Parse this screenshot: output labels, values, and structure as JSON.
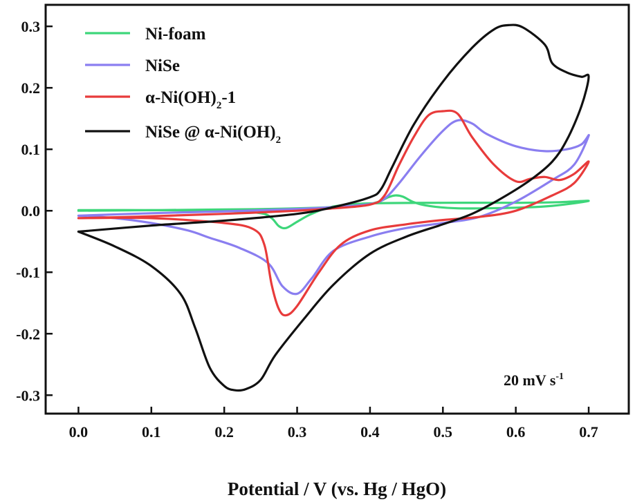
{
  "chart_data": {
    "type": "line",
    "title": "",
    "xlabel": "Potential / V (vs. Hg / HgO)",
    "ylabel": "",
    "xlim": [
      -0.045,
      0.755
    ],
    "ylim": [
      -0.33,
      0.335
    ],
    "x_ticks": [
      {
        "value": 0.0,
        "label": "0.0"
      },
      {
        "value": 0.1,
        "label": "0.1"
      },
      {
        "value": 0.2,
        "label": "0.2"
      },
      {
        "value": 0.3,
        "label": "0.3"
      },
      {
        "value": 0.4,
        "label": "0.4"
      },
      {
        "value": 0.5,
        "label": "0.5"
      },
      {
        "value": 0.6,
        "label": "0.6"
      },
      {
        "value": 0.7,
        "label": "0.7"
      }
    ],
    "y_ticks": [
      {
        "value": -0.3,
        "label": "-0.3"
      },
      {
        "value": -0.2,
        "label": "-0.2"
      },
      {
        "value": -0.1,
        "label": "-0.1"
      },
      {
        "value": 0.0,
        "label": "0.0"
      },
      {
        "value": 0.1,
        "label": "0.1"
      },
      {
        "value": 0.2,
        "label": "0.2"
      },
      {
        "value": 0.3,
        "label": "0.3"
      }
    ],
    "grid": false,
    "legend_position": "top-left",
    "annotation": {
      "text": "20 mV s",
      "superscript": "-1"
    },
    "series": [
      {
        "name": "Ni-foam",
        "legend_main": "Ni-foam",
        "legend_sub": "",
        "legend_tail": "",
        "color": "#3dd67a",
        "points": [
          [
            0.0,
            0.0
          ],
          [
            0.2,
            0.002
          ],
          [
            0.3,
            0.004
          ],
          [
            0.38,
            0.008
          ],
          [
            0.41,
            0.014
          ],
          [
            0.425,
            0.022
          ],
          [
            0.435,
            0.025
          ],
          [
            0.445,
            0.023
          ],
          [
            0.46,
            0.014
          ],
          [
            0.48,
            0.008
          ],
          [
            0.52,
            0.004
          ],
          [
            0.6,
            0.005
          ],
          [
            0.65,
            0.008
          ],
          [
            0.7,
            0.016
          ],
          [
            0.66,
            0.014
          ],
          [
            0.6,
            0.013
          ],
          [
            0.5,
            0.013
          ],
          [
            0.4,
            0.012
          ],
          [
            0.35,
            0.007
          ],
          [
            0.32,
            -0.005
          ],
          [
            0.3,
            -0.018
          ],
          [
            0.285,
            -0.028
          ],
          [
            0.275,
            -0.025
          ],
          [
            0.265,
            -0.012
          ],
          [
            0.25,
            -0.004
          ],
          [
            0.2,
            0.0
          ],
          [
            0.1,
            0.001
          ],
          [
            0.0,
            0.001
          ]
        ]
      },
      {
        "name": "NiSe",
        "legend_main": "NiSe",
        "legend_sub": "",
        "legend_tail": "",
        "color": "#8a7ef0",
        "points": [
          [
            0.0,
            -0.008
          ],
          [
            0.1,
            -0.004
          ],
          [
            0.2,
            -0.001
          ],
          [
            0.3,
            0.003
          ],
          [
            0.35,
            0.006
          ],
          [
            0.4,
            0.011
          ],
          [
            0.42,
            0.02
          ],
          [
            0.44,
            0.045
          ],
          [
            0.47,
            0.09
          ],
          [
            0.5,
            0.13
          ],
          [
            0.52,
            0.147
          ],
          [
            0.54,
            0.142
          ],
          [
            0.56,
            0.125
          ],
          [
            0.6,
            0.105
          ],
          [
            0.64,
            0.097
          ],
          [
            0.67,
            0.1
          ],
          [
            0.69,
            0.108
          ],
          [
            0.7,
            0.122
          ],
          [
            0.68,
            0.075
          ],
          [
            0.65,
            0.05
          ],
          [
            0.6,
            0.015
          ],
          [
            0.55,
            -0.01
          ],
          [
            0.5,
            -0.02
          ],
          [
            0.45,
            -0.028
          ],
          [
            0.4,
            -0.042
          ],
          [
            0.35,
            -0.065
          ],
          [
            0.32,
            -0.11
          ],
          [
            0.3,
            -0.135
          ],
          [
            0.28,
            -0.123
          ],
          [
            0.26,
            -0.085
          ],
          [
            0.22,
            -0.06
          ],
          [
            0.18,
            -0.044
          ],
          [
            0.15,
            -0.032
          ],
          [
            0.1,
            -0.02
          ],
          [
            0.05,
            -0.012
          ],
          [
            0.0,
            -0.008
          ]
        ]
      },
      {
        "name": "α-Ni(OH)2-1",
        "legend_main": "α-Ni(OH)",
        "legend_sub": "2",
        "legend_tail": "-1",
        "color": "#e83b3b",
        "points": [
          [
            0.0,
            -0.012
          ],
          [
            0.1,
            -0.009
          ],
          [
            0.2,
            -0.005
          ],
          [
            0.3,
            0.0
          ],
          [
            0.35,
            0.004
          ],
          [
            0.4,
            0.01
          ],
          [
            0.42,
            0.025
          ],
          [
            0.44,
            0.075
          ],
          [
            0.46,
            0.12
          ],
          [
            0.48,
            0.155
          ],
          [
            0.5,
            0.162
          ],
          [
            0.52,
            0.158
          ],
          [
            0.54,
            0.12
          ],
          [
            0.57,
            0.075
          ],
          [
            0.6,
            0.048
          ],
          [
            0.62,
            0.052
          ],
          [
            0.64,
            0.055
          ],
          [
            0.66,
            0.05
          ],
          [
            0.68,
            0.06
          ],
          [
            0.7,
            0.08
          ],
          [
            0.68,
            0.045
          ],
          [
            0.65,
            0.025
          ],
          [
            0.6,
            0.0
          ],
          [
            0.55,
            -0.01
          ],
          [
            0.5,
            -0.015
          ],
          [
            0.45,
            -0.022
          ],
          [
            0.4,
            -0.032
          ],
          [
            0.36,
            -0.055
          ],
          [
            0.33,
            -0.1
          ],
          [
            0.3,
            -0.155
          ],
          [
            0.285,
            -0.17
          ],
          [
            0.275,
            -0.16
          ],
          [
            0.265,
            -0.12
          ],
          [
            0.255,
            -0.055
          ],
          [
            0.24,
            -0.03
          ],
          [
            0.2,
            -0.02
          ],
          [
            0.1,
            -0.012
          ],
          [
            0.0,
            -0.012
          ]
        ]
      },
      {
        "name": "NiSe @ α-Ni(OH)2",
        "legend_main": "NiSe @ α-Ni(OH)",
        "legend_sub": "2",
        "legend_tail": "",
        "color": "#111111",
        "points": [
          [
            0.0,
            -0.034
          ],
          [
            0.1,
            -0.024
          ],
          [
            0.2,
            -0.016
          ],
          [
            0.3,
            -0.005
          ],
          [
            0.35,
            0.006
          ],
          [
            0.4,
            0.022
          ],
          [
            0.415,
            0.035
          ],
          [
            0.43,
            0.07
          ],
          [
            0.46,
            0.14
          ],
          [
            0.5,
            0.21
          ],
          [
            0.54,
            0.265
          ],
          [
            0.57,
            0.295
          ],
          [
            0.59,
            0.302
          ],
          [
            0.61,
            0.298
          ],
          [
            0.64,
            0.27
          ],
          [
            0.65,
            0.24
          ],
          [
            0.67,
            0.225
          ],
          [
            0.69,
            0.218
          ],
          [
            0.7,
            0.218
          ],
          [
            0.69,
            0.17
          ],
          [
            0.67,
            0.115
          ],
          [
            0.65,
            0.08
          ],
          [
            0.62,
            0.05
          ],
          [
            0.58,
            0.02
          ],
          [
            0.54,
            -0.005
          ],
          [
            0.5,
            -0.022
          ],
          [
            0.45,
            -0.042
          ],
          [
            0.4,
            -0.07
          ],
          [
            0.35,
            -0.12
          ],
          [
            0.31,
            -0.175
          ],
          [
            0.27,
            -0.235
          ],
          [
            0.25,
            -0.275
          ],
          [
            0.23,
            -0.29
          ],
          [
            0.215,
            -0.292
          ],
          [
            0.2,
            -0.285
          ],
          [
            0.18,
            -0.255
          ],
          [
            0.16,
            -0.19
          ],
          [
            0.14,
            -0.135
          ],
          [
            0.1,
            -0.09
          ],
          [
            0.05,
            -0.058
          ],
          [
            0.0,
            -0.034
          ]
        ]
      }
    ]
  }
}
